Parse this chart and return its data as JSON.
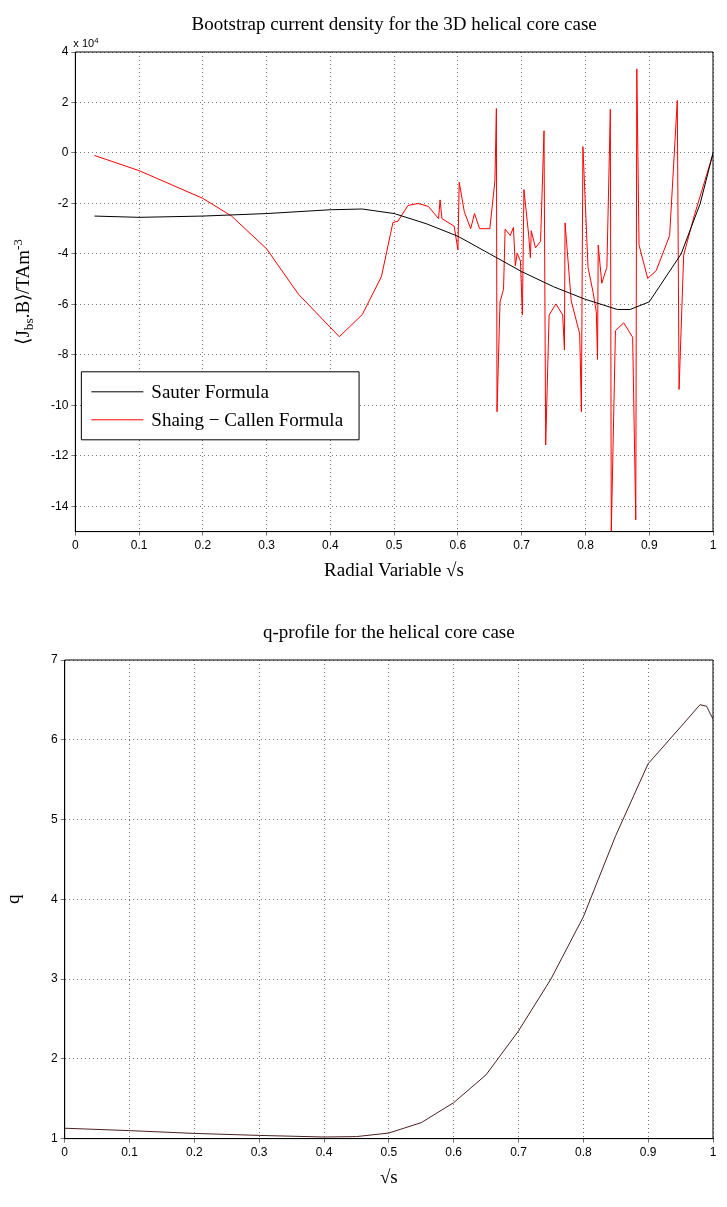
{
  "chart_data": [
    {
      "type": "line",
      "title": "Bootstrap current density for the 3D helical core case",
      "xlabel": "Radial Variable √s",
      "ylabel": "⟨J$_{bs}$.B⟩/TAm$^{-3}$",
      "annotations": [
        "x 10$^{4}$"
      ],
      "xlim": [
        0,
        1
      ],
      "ylim": [
        -15,
        4
      ],
      "xticks": [
        0,
        0.1,
        0.2,
        0.3,
        0.4,
        0.5,
        0.6,
        0.7,
        0.8,
        0.9,
        1
      ],
      "yticks": [
        -14,
        -12,
        -10,
        -8,
        -6,
        -4,
        -2,
        0,
        2,
        4
      ],
      "grid": true,
      "legend": "left",
      "marker": "none",
      "series": [
        {
          "name": "Sauter Formula",
          "color": "#000000",
          "x": [
            0.03,
            0.1,
            0.2,
            0.3,
            0.4,
            0.45,
            0.5,
            0.55,
            0.6,
            0.65,
            0.7,
            0.75,
            0.8,
            0.85,
            0.87,
            0.9,
            0.95,
            0.98,
            1.0
          ],
          "values": [
            -2.5,
            -2.55,
            -2.5,
            -2.4,
            -2.25,
            -2.22,
            -2.4,
            -2.8,
            -3.3,
            -4.0,
            -4.7,
            -5.3,
            -5.8,
            -6.2,
            -6.2,
            -5.9,
            -4.0,
            -2.0,
            0
          ]
        },
        {
          "name": "Shaing − Callen Formula",
          "color": "#ff0000",
          "x": [
            0.03,
            0.1,
            0.2,
            0.245,
            0.3,
            0.35,
            0.414,
            0.45,
            0.48,
            0.498,
            0.506,
            0.5216,
            0.5376,
            0.5536,
            0.5696,
            0.572,
            0.5749,
            0.594,
            0.6,
            0.602,
            0.61,
            0.62,
            0.626,
            0.634,
            0.65,
            0.658,
            0.6603,
            0.6613,
            0.666,
            0.6715,
            0.674,
            0.682,
            0.687,
            0.69,
            0.693,
            0.698,
            0.7011,
            0.7035,
            0.711,
            0.7136,
            0.715,
            0.7216,
            0.7296,
            0.735,
            0.7376,
            0.743,
            0.7536,
            0.7643,
            0.767,
            0.768,
            0.7776,
            0.791,
            0.7936,
            0.796,
            0.804,
            0.812,
            0.817,
            0.8189,
            0.82,
            0.8256,
            0.8336,
            0.839,
            0.8405,
            0.847,
            0.86,
            0.874,
            0.8789,
            0.8805,
            0.884,
            0.8976,
            0.911,
            0.932,
            0.944,
            0.9468,
            0.954,
            0.97,
            0.9997
          ],
          "values": [
            -0.1,
            -0.7,
            -1.8,
            -2.5,
            -3.8,
            -5.6,
            -7.28,
            -6.4,
            -4.9,
            -2.76,
            -2.7,
            -2.08,
            -2.0,
            -2.12,
            -2.6,
            -1.86,
            -2.6,
            -2.9,
            -3.84,
            -1.16,
            -2.33,
            -3.0,
            -2.4,
            -3.0,
            -3.0,
            -1.1,
            1.76,
            -10.25,
            -5.9,
            -5.4,
            -3.02,
            -3.27,
            -2.95,
            -4.47,
            -3.97,
            -4.28,
            -6.42,
            -1.45,
            -3.27,
            -4.15,
            -3.08,
            -3.76,
            -3.5,
            0.88,
            -11.57,
            -6.42,
            -5.98,
            -6.42,
            -7.8,
            -2.77,
            -5.85,
            -7.17,
            -10.25,
            0.25,
            -4.53,
            -5.53,
            -6.29,
            -8.18,
            -3.65,
            -5.16,
            -4.53,
            1.73,
            -15,
            -7.04,
            -6.73,
            -7.3,
            -14.53,
            3.33,
            -3.65,
            -4.97,
            -4.66,
            -3.27,
            2.08,
            -9.37,
            -4.05,
            -2.54,
            -0.06
          ]
        }
      ]
    },
    {
      "type": "line",
      "title": "q-profile for the helical core case",
      "xlabel": "√s",
      "ylabel": "q",
      "xlim": [
        0,
        1
      ],
      "ylim": [
        1,
        7
      ],
      "xticks": [
        0,
        0.1,
        0.2,
        0.3,
        0.4,
        0.5,
        0.6,
        0.7,
        0.8,
        0.9,
        1
      ],
      "yticks": [
        1,
        2,
        3,
        4,
        5,
        6,
        7
      ],
      "grid": true,
      "marker": "none",
      "series": [
        {
          "color": "#4d2020",
          "x": [
            0,
            0.1,
            0.2,
            0.3,
            0.4,
            0.45,
            0.5,
            0.55,
            0.6,
            0.65,
            0.7,
            0.75,
            0.8,
            0.85,
            0.9,
            0.95,
            0.98,
            0.99,
            1.0
          ],
          "values": [
            1.13,
            1.1,
            1.065,
            1.04,
            1.02,
            1.025,
            1.07,
            1.2,
            1.45,
            1.8,
            2.35,
            3.0,
            3.78,
            4.8,
            5.7,
            6.16,
            6.44,
            6.42,
            6.26
          ]
        }
      ]
    }
  ]
}
